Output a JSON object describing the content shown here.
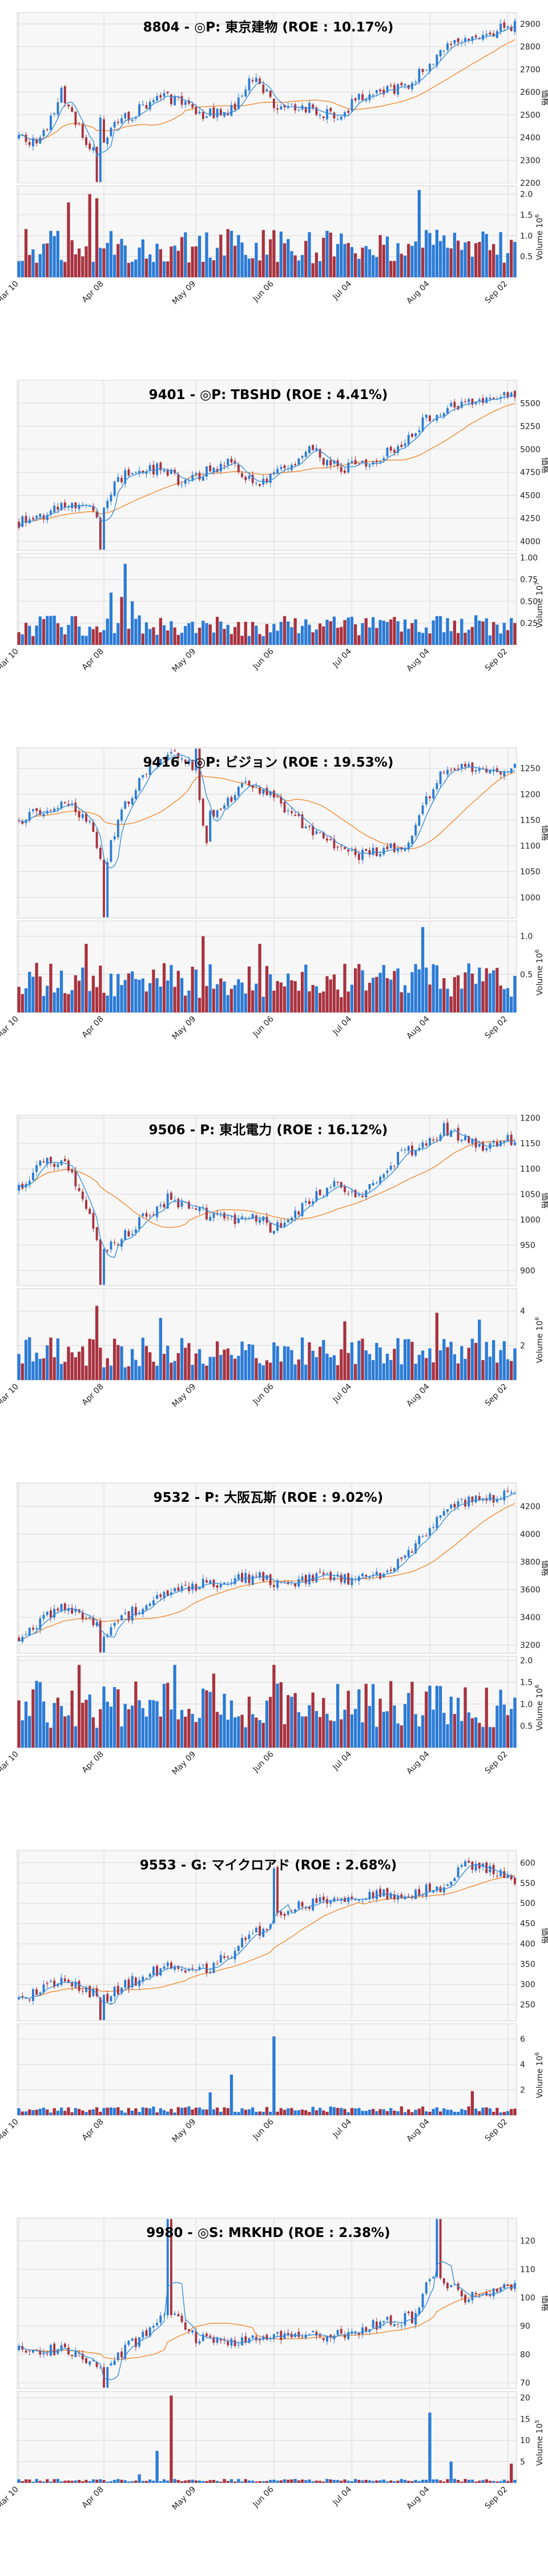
{
  "chart_data": [
    {
      "type": "candlestick",
      "title": "8804 - ◎P: 東京建物 (ROE : 10.17%)",
      "ylabel": "価格",
      "volume_label": "Volume",
      "volume_exp": "6",
      "ylim": [
        2200,
        2950
      ],
      "yticks": [
        "2200",
        "2300",
        "2400",
        "2500",
        "2600",
        "2700",
        "2800",
        "2900"
      ],
      "vol_ylim": [
        0,
        2.2
      ],
      "vol_ticks": [
        "0.5",
        "1.0",
        "1.5",
        "2.0"
      ],
      "xticks": [
        "Mar 10",
        "Apr 08",
        "May 09",
        "Jun 06",
        "Jul 04",
        "Aug 04",
        "Sep 02"
      ],
      "anchors": [
        [
          0,
          2400
        ],
        [
          6,
          2380
        ],
        [
          12,
          2600
        ],
        [
          18,
          2420
        ],
        [
          22,
          2300
        ],
        [
          26,
          2450
        ],
        [
          32,
          2500
        ],
        [
          40,
          2580
        ],
        [
          46,
          2550
        ],
        [
          52,
          2500
        ],
        [
          60,
          2520
        ],
        [
          66,
          2660
        ],
        [
          72,
          2550
        ],
        [
          80,
          2540
        ],
        [
          86,
          2510
        ],
        [
          90,
          2480
        ],
        [
          96,
          2580
        ],
        [
          104,
          2600
        ],
        [
          110,
          2640
        ],
        [
          114,
          2700
        ],
        [
          120,
          2780
        ],
        [
          126,
          2850
        ],
        [
          130,
          2820
        ],
        [
          136,
          2880
        ],
        [
          140,
          2900
        ]
      ],
      "spikes": [
        [
          22,
          -0.25
        ],
        [
          23,
          0.2
        ]
      ],
      "vol_base": 0.75,
      "vol_spikes": [
        [
          20,
          2.0
        ],
        [
          22,
          1.9
        ],
        [
          113,
          2.1
        ],
        [
          14,
          1.8
        ]
      ]
    },
    {
      "type": "candlestick",
      "title": "9401 - ◎P: TBSHD (ROE : 4.41%)",
      "ylabel": "価格",
      "volume_label": "Volume",
      "volume_exp": "7",
      "ylim": [
        3900,
        5750
      ],
      "yticks": [
        "4000",
        "4250",
        "4500",
        "4750",
        "5000",
        "5250",
        "5500"
      ],
      "vol_ylim": [
        0,
        1.05
      ],
      "vol_ticks": [
        "0.25",
        "0.50",
        "0.75",
        "1.00"
      ],
      "xticks": [
        "Mar 10",
        "Apr 08",
        "May 09",
        "Jun 06",
        "Jul 04",
        "Aug 04",
        "Sep 02"
      ],
      "anchors": [
        [
          0,
          4200
        ],
        [
          10,
          4350
        ],
        [
          18,
          4420
        ],
        [
          22,
          4250
        ],
        [
          26,
          4550
        ],
        [
          32,
          4800
        ],
        [
          40,
          4780
        ],
        [
          46,
          4650
        ],
        [
          52,
          4750
        ],
        [
          60,
          4850
        ],
        [
          66,
          4650
        ],
        [
          72,
          4700
        ],
        [
          78,
          4850
        ],
        [
          82,
          5050
        ],
        [
          86,
          4850
        ],
        [
          92,
          4800
        ],
        [
          100,
          4900
        ],
        [
          108,
          5050
        ],
        [
          114,
          5300
        ],
        [
          122,
          5450
        ],
        [
          128,
          5500
        ],
        [
          134,
          5550
        ],
        [
          140,
          5600
        ]
      ],
      "spikes": [
        [
          23,
          -0.3
        ]
      ],
      "vol_base": 0.22,
      "vol_spikes": [
        [
          30,
          0.93
        ],
        [
          26,
          0.6
        ],
        [
          29,
          0.55
        ],
        [
          32,
          0.5
        ]
      ]
    },
    {
      "type": "candlestick",
      "title": "9416 - ◎P: ビジョン (ROE : 19.53%)",
      "ylabel": "価格",
      "volume_label": "Volume",
      "volume_exp": "6",
      "ylim": [
        960,
        1290
      ],
      "yticks": [
        "1000",
        "1050",
        "1100",
        "1150",
        "1200",
        "1250"
      ],
      "vol_ylim": [
        0,
        1.2
      ],
      "vol_ticks": [
        "0.5",
        "1.0"
      ],
      "xticks": [
        "Mar 10",
        "Apr 08",
        "May 09",
        "Jun 06",
        "Jul 04",
        "Aug 04",
        "Sep 02"
      ],
      "anchors": [
        [
          0,
          1150
        ],
        [
          8,
          1170
        ],
        [
          14,
          1180
        ],
        [
          20,
          1150
        ],
        [
          24,
          1050
        ],
        [
          28,
          1150
        ],
        [
          34,
          1230
        ],
        [
          40,
          1270
        ],
        [
          46,
          1280
        ],
        [
          50,
          1230
        ],
        [
          52,
          1150
        ],
        [
          58,
          1180
        ],
        [
          64,
          1220
        ],
        [
          70,
          1200
        ],
        [
          76,
          1170
        ],
        [
          82,
          1130
        ],
        [
          88,
          1100
        ],
        [
          96,
          1080
        ],
        [
          104,
          1090
        ],
        [
          110,
          1110
        ],
        [
          114,
          1180
        ],
        [
          120,
          1250
        ],
        [
          126,
          1260
        ],
        [
          132,
          1240
        ],
        [
          140,
          1255
        ]
      ],
      "spikes": [
        [
          24,
          -0.35
        ],
        [
          50,
          0.2
        ],
        [
          53,
          -0.15
        ]
      ],
      "vol_base": 0.42,
      "vol_spikes": [
        [
          52,
          1.0
        ],
        [
          114,
          1.12
        ],
        [
          68,
          0.9
        ],
        [
          19,
          0.9
        ]
      ]
    },
    {
      "type": "candlestick",
      "title": "9506 - P: 東北電力 (ROE : 16.12%)",
      "ylabel": "価格",
      "volume_label": "Volume",
      "volume_exp": "6",
      "ylim": [
        870,
        1205
      ],
      "yticks": [
        "900",
        "950",
        "1000",
        "1050",
        "1100",
        "1150",
        "1200"
      ],
      "vol_ylim": [
        0,
        5.3
      ],
      "vol_ticks": [
        "2",
        "4"
      ],
      "xticks": [
        "Mar 10",
        "Apr 08",
        "May 09",
        "Jun 06",
        "Jul 04",
        "Aug 04",
        "Sep 02"
      ],
      "anchors": [
        [
          0,
          1060
        ],
        [
          8,
          1120
        ],
        [
          14,
          1100
        ],
        [
          20,
          1000
        ],
        [
          24,
          940
        ],
        [
          30,
          970
        ],
        [
          36,
          1010
        ],
        [
          42,
          1040
        ],
        [
          48,
          1020
        ],
        [
          54,
          1010
        ],
        [
          60,
          1000
        ],
        [
          66,
          1010
        ],
        [
          72,
          980
        ],
        [
          78,
          1010
        ],
        [
          84,
          1050
        ],
        [
          90,
          1070
        ],
        [
          96,
          1040
        ],
        [
          102,
          1080
        ],
        [
          108,
          1130
        ],
        [
          114,
          1140
        ],
        [
          120,
          1180
        ],
        [
          126,
          1160
        ],
        [
          132,
          1140
        ],
        [
          140,
          1160
        ]
      ],
      "spikes": [
        [
          23,
          -0.35
        ]
      ],
      "vol_base": 1.6,
      "vol_spikes": [
        [
          22,
          4.3
        ],
        [
          40,
          3.6
        ],
        [
          118,
          3.9
        ],
        [
          130,
          3.5
        ],
        [
          92,
          3.4
        ]
      ]
    },
    {
      "type": "candlestick",
      "title": "9532 - P: 大阪瓦斯 (ROE : 9.02%)",
      "ylabel": "価格",
      "volume_label": "Volume",
      "volume_exp": "6",
      "ylim": [
        3140,
        4370
      ],
      "yticks": [
        "3200",
        "3400",
        "3600",
        "3800",
        "4000",
        "4200"
      ],
      "vol_ylim": [
        0,
        2.1
      ],
      "vol_ticks": [
        "0.5",
        "1.0",
        "1.5",
        "2.0"
      ],
      "xticks": [
        "Mar 10",
        "Apr 08",
        "May 09",
        "Jun 06",
        "Jul 04",
        "Aug 04",
        "Sep 02"
      ],
      "anchors": [
        [
          0,
          3250
        ],
        [
          8,
          3420
        ],
        [
          14,
          3480
        ],
        [
          20,
          3400
        ],
        [
          24,
          3280
        ],
        [
          30,
          3400
        ],
        [
          36,
          3500
        ],
        [
          44,
          3600
        ],
        [
          52,
          3640
        ],
        [
          60,
          3660
        ],
        [
          68,
          3700
        ],
        [
          74,
          3620
        ],
        [
          80,
          3680
        ],
        [
          86,
          3720
        ],
        [
          94,
          3670
        ],
        [
          102,
          3720
        ],
        [
          108,
          3820
        ],
        [
          114,
          3980
        ],
        [
          120,
          4150
        ],
        [
          126,
          4230
        ],
        [
          132,
          4250
        ],
        [
          140,
          4290
        ]
      ],
      "spikes": [
        [
          23,
          -0.2
        ]
      ],
      "vol_base": 1.0,
      "vol_spikes": [
        [
          72,
          1.9
        ],
        [
          55,
          1.7
        ],
        [
          17,
          1.9
        ],
        [
          44,
          1.9
        ]
      ]
    },
    {
      "type": "candlestick",
      "title": "9553 - G: マイクロアド (ROE : 2.68%)",
      "ylabel": "価格",
      "volume_label": "Volume",
      "volume_exp": "6",
      "ylim": [
        210,
        630
      ],
      "yticks": [
        "250",
        "300",
        "350",
        "400",
        "450",
        "500",
        "550",
        "600"
      ],
      "vol_ylim": [
        0,
        7.2
      ],
      "vol_ticks": [
        "2",
        "4",
        "6"
      ],
      "xticks": [
        "Mar 10",
        "Apr 08",
        "May 09",
        "Jun 06",
        "Jul 04",
        "Aug 04",
        "Sep 02"
      ],
      "anchors": [
        [
          0,
          265
        ],
        [
          8,
          290
        ],
        [
          14,
          310
        ],
        [
          20,
          280
        ],
        [
          24,
          260
        ],
        [
          30,
          300
        ],
        [
          36,
          320
        ],
        [
          42,
          350
        ],
        [
          48,
          330
        ],
        [
          54,
          340
        ],
        [
          60,
          380
        ],
        [
          66,
          420
        ],
        [
          72,
          460
        ],
        [
          78,
          490
        ],
        [
          84,
          500
        ],
        [
          92,
          505
        ],
        [
          100,
          520
        ],
        [
          108,
          520
        ],
        [
          114,
          530
        ],
        [
          120,
          540
        ],
        [
          126,
          600
        ],
        [
          132,
          580
        ],
        [
          140,
          560
        ]
      ],
      "spikes": [
        [
          23,
          -0.2
        ],
        [
          72,
          0.3
        ]
      ],
      "vol_base": 0.45,
      "vol_spikes": [
        [
          72,
          6.2
        ],
        [
          60,
          3.2
        ],
        [
          54,
          1.8
        ],
        [
          128,
          1.9
        ]
      ]
    },
    {
      "type": "candlestick",
      "title": "9980 - ◎S: MRKHD (ROE : 2.38%)",
      "ylabel": "価格",
      "volume_label": "Volume",
      "volume_exp": "5",
      "ylim": [
        68,
        128
      ],
      "yticks": [
        "70",
        "80",
        "90",
        "100",
        "110",
        "120"
      ],
      "vol_ylim": [
        0,
        21.5
      ],
      "vol_ticks": [
        "5",
        "10",
        "15",
        "20"
      ],
      "xticks": [
        "Mar 10",
        "Apr 08",
        "May 09",
        "Jun 06",
        "Jul 04",
        "Aug 04",
        "Sep 02"
      ],
      "anchors": [
        [
          0,
          81
        ],
        [
          8,
          82
        ],
        [
          14,
          81
        ],
        [
          20,
          77
        ],
        [
          24,
          76
        ],
        [
          30,
          82
        ],
        [
          36,
          87
        ],
        [
          42,
          97
        ],
        [
          46,
          92
        ],
        [
          50,
          86
        ],
        [
          56,
          85
        ],
        [
          62,
          85
        ],
        [
          70,
          86
        ],
        [
          78,
          87
        ],
        [
          86,
          87
        ],
        [
          94,
          88
        ],
        [
          100,
          90
        ],
        [
          106,
          92
        ],
        [
          112,
          93
        ],
        [
          116,
          108
        ],
        [
          120,
          106
        ],
        [
          126,
          100
        ],
        [
          132,
          102
        ],
        [
          140,
          105
        ]
      ],
      "spikes": [
        [
          42,
          0.9
        ],
        [
          24,
          -0.4
        ],
        [
          118,
          0.5
        ]
      ],
      "vol_base": 0.6,
      "vol_spikes": [
        [
          43,
          20.5
        ],
        [
          39,
          7.5
        ],
        [
          116,
          16.5
        ],
        [
          122,
          5.0
        ],
        [
          139,
          4.5
        ],
        [
          34,
          2.0
        ]
      ]
    }
  ]
}
